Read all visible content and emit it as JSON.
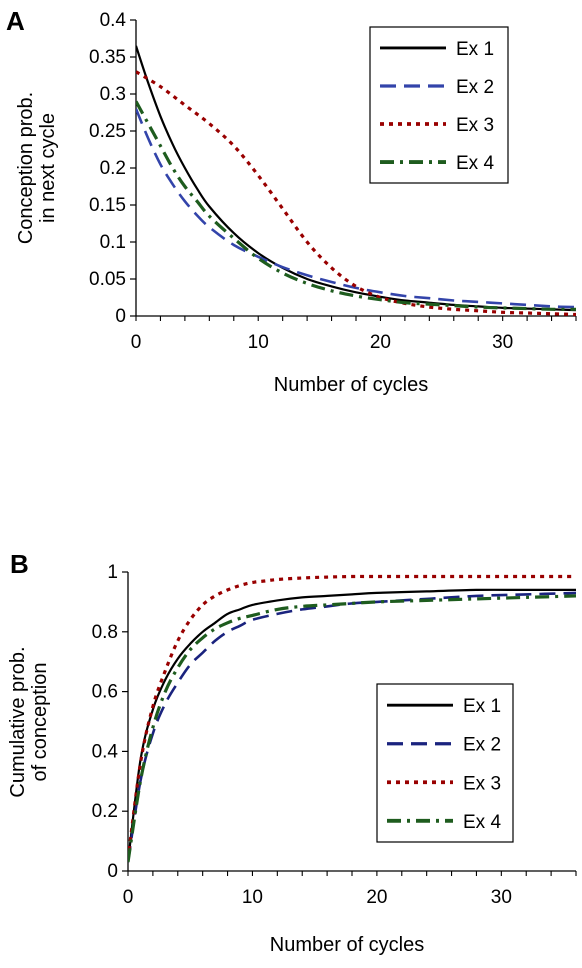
{
  "chart_data": [
    {
      "panel_label": "A",
      "type": "line",
      "xlabel": "Number of cycles",
      "ylabel_lines": [
        "Conception prob.",
        "in next cycle"
      ],
      "xlim": [
        0,
        36
      ],
      "ylim": [
        0,
        0.4
      ],
      "xticks": [
        "0",
        "10",
        "20",
        "30"
      ],
      "xtick_values": [
        0,
        10,
        20,
        30
      ],
      "yticks": [
        "0",
        "0.05",
        "0.1",
        "0.15",
        "0.2",
        "0.25",
        "0.3",
        "0.35",
        "0.4"
      ],
      "ytick_values": [
        0,
        0.05,
        0.1,
        0.15,
        0.2,
        0.25,
        0.3,
        0.35,
        0.4
      ],
      "legend_position": "top-right",
      "series": [
        {
          "name": "Ex 1",
          "color": "#000000",
          "style": "solid",
          "x": [
            0,
            1,
            2,
            3,
            4,
            5,
            6,
            8,
            10,
            12,
            14,
            16,
            18,
            20,
            22,
            24,
            26,
            28,
            30,
            32,
            34,
            36
          ],
          "y": [
            0.365,
            0.315,
            0.27,
            0.232,
            0.2,
            0.172,
            0.148,
            0.112,
            0.085,
            0.065,
            0.05,
            0.04,
            0.032,
            0.026,
            0.021,
            0.018,
            0.015,
            0.013,
            0.011,
            0.01,
            0.009,
            0.008
          ]
        },
        {
          "name": "Ex 2",
          "color": "#3344aa",
          "style": "dash",
          "x": [
            0,
            1,
            2,
            3,
            4,
            5,
            6,
            8,
            10,
            12,
            14,
            16,
            18,
            20,
            22,
            24,
            26,
            28,
            30,
            32,
            34,
            36
          ],
          "y": [
            0.28,
            0.24,
            0.205,
            0.178,
            0.155,
            0.136,
            0.12,
            0.096,
            0.08,
            0.066,
            0.055,
            0.046,
            0.038,
            0.032,
            0.027,
            0.024,
            0.021,
            0.019,
            0.017,
            0.015,
            0.013,
            0.012
          ]
        },
        {
          "name": "Ex 3",
          "color": "#990000",
          "style": "dot",
          "x": [
            0,
            2,
            4,
            6,
            8,
            10,
            12,
            14,
            16,
            18,
            20,
            22,
            24,
            26,
            28,
            30,
            32,
            34,
            36
          ],
          "y": [
            0.33,
            0.31,
            0.285,
            0.26,
            0.23,
            0.19,
            0.145,
            0.1,
            0.065,
            0.04,
            0.025,
            0.017,
            0.012,
            0.009,
            0.007,
            0.005,
            0.004,
            0.003,
            0.002
          ]
        },
        {
          "name": "Ex 4",
          "color": "#1e5c1e",
          "style": "dashdot",
          "x": [
            0,
            1,
            2,
            3,
            4,
            5,
            6,
            8,
            10,
            12,
            14,
            16,
            18,
            20,
            22,
            24,
            26,
            28,
            30,
            32,
            34,
            36
          ],
          "y": [
            0.29,
            0.26,
            0.23,
            0.2,
            0.175,
            0.155,
            0.135,
            0.105,
            0.078,
            0.058,
            0.044,
            0.034,
            0.027,
            0.022,
            0.018,
            0.016,
            0.014,
            0.012,
            0.011,
            0.01,
            0.009,
            0.009
          ]
        }
      ]
    },
    {
      "panel_label": "B",
      "type": "line",
      "xlabel": "Number of cycles",
      "ylabel_lines": [
        "Cumulative prob.",
        "of conception"
      ],
      "xlim": [
        0,
        36
      ],
      "ylim": [
        0,
        1
      ],
      "xticks": [
        "0",
        "10",
        "20",
        "30"
      ],
      "xtick_values": [
        0,
        10,
        20,
        30
      ],
      "yticks": [
        "0",
        "0.2",
        "0.4",
        "0.6",
        "0.8",
        "1"
      ],
      "ytick_values": [
        0,
        0.2,
        0.4,
        0.6,
        0.8,
        1
      ],
      "legend_position": "center-right",
      "series": [
        {
          "name": "Ex 1",
          "color": "#000000",
          "style": "solid",
          "x": [
            0,
            1,
            2,
            3,
            4,
            5,
            6,
            7,
            8,
            9,
            10,
            12,
            14,
            16,
            18,
            20,
            24,
            28,
            32,
            36
          ],
          "y": [
            0.03,
            0.37,
            0.54,
            0.64,
            0.71,
            0.76,
            0.8,
            0.83,
            0.86,
            0.875,
            0.89,
            0.905,
            0.915,
            0.92,
            0.925,
            0.93,
            0.935,
            0.94,
            0.94,
            0.94
          ]
        },
        {
          "name": "Ex 2",
          "color": "#1a237e",
          "style": "dash",
          "x": [
            0,
            1,
            2,
            3,
            4,
            5,
            6,
            7,
            8,
            9,
            10,
            12,
            14,
            16,
            18,
            20,
            24,
            28,
            32,
            36
          ],
          "y": [
            0.03,
            0.3,
            0.46,
            0.56,
            0.63,
            0.69,
            0.73,
            0.77,
            0.8,
            0.82,
            0.84,
            0.86,
            0.875,
            0.885,
            0.895,
            0.9,
            0.91,
            0.92,
            0.925,
            0.93
          ]
        },
        {
          "name": "Ex 3",
          "color": "#990000",
          "style": "dot",
          "x": [
            0,
            1,
            2,
            3,
            4,
            5,
            6,
            7,
            8,
            9,
            10,
            11,
            12,
            14,
            16,
            18,
            20,
            24,
            28,
            32,
            36
          ],
          "y": [
            0.04,
            0.36,
            0.55,
            0.67,
            0.77,
            0.84,
            0.89,
            0.92,
            0.94,
            0.955,
            0.965,
            0.97,
            0.975,
            0.98,
            0.983,
            0.985,
            0.985,
            0.985,
            0.985,
            0.985,
            0.985
          ]
        },
        {
          "name": "Ex 4",
          "color": "#1e5c1e",
          "style": "dashdot",
          "x": [
            0,
            1,
            2,
            3,
            4,
            5,
            6,
            7,
            8,
            9,
            10,
            12,
            14,
            16,
            18,
            20,
            24,
            28,
            32,
            36
          ],
          "y": [
            0.03,
            0.3,
            0.48,
            0.6,
            0.68,
            0.74,
            0.78,
            0.81,
            0.83,
            0.845,
            0.855,
            0.875,
            0.885,
            0.89,
            0.895,
            0.9,
            0.905,
            0.91,
            0.915,
            0.92
          ]
        }
      ]
    }
  ]
}
